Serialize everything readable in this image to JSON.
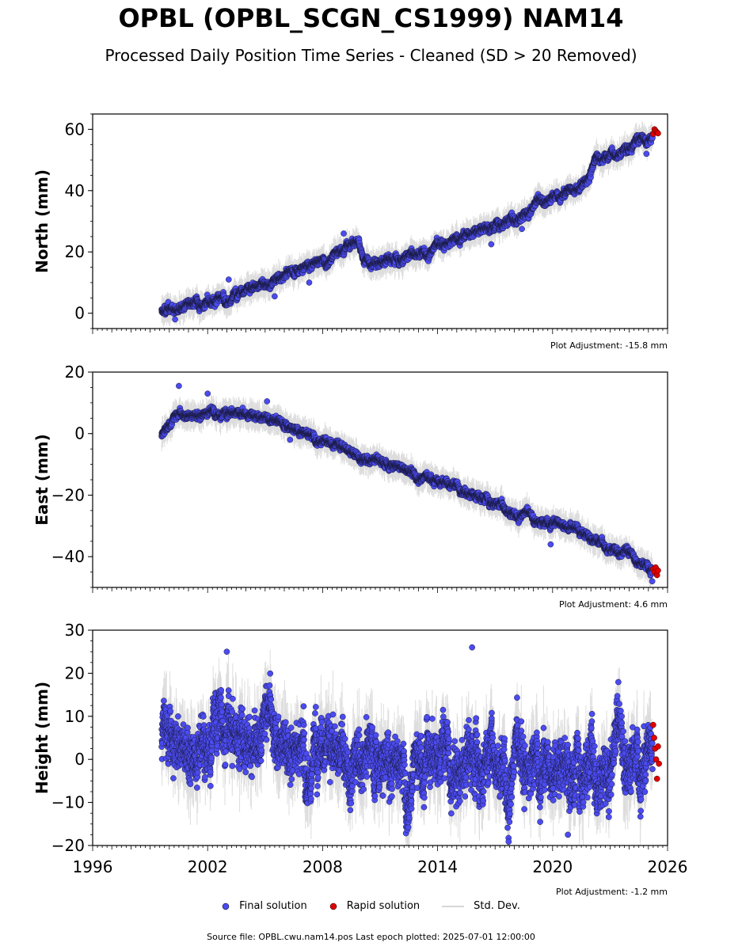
{
  "title": "OPBL (OPBL_SCGN_CS1999) NAM14",
  "subtitle": "Processed Daily Position Time Series - Cleaned (SD > 20 Removed)",
  "source_line": "Source file: OPBL.cwu.nam14.pos  Last epoch plotted: 2025-07-01 12:00:00",
  "legend": {
    "final": "Final solution",
    "rapid": "Rapid solution",
    "sd": "Std. Dev."
  },
  "colors": {
    "final": "#4b4bf0",
    "rapid": "#e00000",
    "sd": "#b4b4b4"
  },
  "chart_data": [
    {
      "type": "scatter",
      "name": "north",
      "ylabel": "North (mm)",
      "adjustment": "Plot Adjustment: -15.8 mm",
      "xlim": [
        1996,
        2026
      ],
      "ylim": [
        -5,
        65
      ],
      "yticks": [
        0,
        20,
        40,
        60
      ],
      "show_x_tick_labels": false,
      "trend": [
        [
          1999.6,
          0.5
        ],
        [
          2002.0,
          3
        ],
        [
          2005.0,
          10
        ],
        [
          2008.0,
          18
        ],
        [
          2009.9,
          24
        ],
        [
          2010.1,
          17
        ],
        [
          2012.0,
          18
        ],
        [
          2014.0,
          22
        ],
        [
          2016.0,
          27
        ],
        [
          2018.0,
          31
        ],
        [
          2020.0,
          38
        ],
        [
          2021.8,
          42
        ],
        [
          2022.2,
          50
        ],
        [
          2024.0,
          54
        ],
        [
          2025.5,
          58
        ]
      ],
      "noise": 1.2,
      "sd": 3,
      "outliers": [
        [
          2000.3,
          -2
        ],
        [
          2003.1,
          11
        ],
        [
          2005.5,
          5.5
        ],
        [
          2007.3,
          10
        ],
        [
          2009.1,
          26
        ],
        [
          2016.8,
          22.5
        ],
        [
          2018.4,
          27.5
        ],
        [
          2024.9,
          52
        ]
      ],
      "rapid": [
        [
          2025.25,
          58.5
        ],
        [
          2025.32,
          60
        ],
        [
          2025.38,
          59.5
        ],
        [
          2025.45,
          59
        ],
        [
          2025.5,
          58.7
        ]
      ]
    },
    {
      "type": "scatter",
      "name": "east",
      "ylabel": "East (mm)",
      "adjustment": "Plot Adjustment: 4.6 mm",
      "xlim": [
        1996,
        2026
      ],
      "ylim": [
        -50,
        20
      ],
      "yticks": [
        -40,
        -20,
        0,
        20
      ],
      "show_x_tick_labels": false,
      "trend": [
        [
          1999.6,
          0
        ],
        [
          2000.5,
          6
        ],
        [
          2002.0,
          7
        ],
        [
          2004.5,
          6.5
        ],
        [
          2006.0,
          3
        ],
        [
          2008.0,
          -1
        ],
        [
          2010.0,
          -7
        ],
        [
          2012.0,
          -11
        ],
        [
          2014.0,
          -15
        ],
        [
          2016.0,
          -20
        ],
        [
          2018.0,
          -25
        ],
        [
          2019.5,
          -29
        ],
        [
          2020.5,
          -29
        ],
        [
          2021.5,
          -32
        ],
        [
          2023.0,
          -37
        ],
        [
          2025.5,
          -45
        ]
      ],
      "noise": 1.1,
      "sd": 3,
      "outliers": [
        [
          2000.5,
          15.5
        ],
        [
          2002.0,
          13
        ],
        [
          2005.1,
          10.5
        ],
        [
          2006.3,
          -2
        ],
        [
          2019.9,
          -36
        ],
        [
          2025.2,
          -48
        ]
      ],
      "rapid": [
        [
          2025.25,
          -44
        ],
        [
          2025.32,
          -45
        ],
        [
          2025.38,
          -43.5
        ],
        [
          2025.45,
          -46
        ],
        [
          2025.5,
          -44.5
        ]
      ]
    },
    {
      "type": "scatter",
      "name": "height",
      "ylabel": "Height (mm)",
      "adjustment": "Plot Adjustment: -1.2 mm",
      "xlim": [
        1996,
        2026
      ],
      "ylim": [
        -20,
        30
      ],
      "yticks": [
        -20,
        -10,
        0,
        10,
        20,
        30
      ],
      "show_x_tick_labels": true,
      "xticks": [
        1996,
        2002,
        2008,
        2014,
        2020,
        2026
      ],
      "trend": [
        [
          1999.6,
          3
        ],
        [
          2003.0,
          7
        ],
        [
          2006.0,
          5
        ],
        [
          2010.0,
          2
        ],
        [
          2014.0,
          2
        ],
        [
          2018.0,
          1
        ],
        [
          2020.0,
          -1
        ],
        [
          2022.0,
          0
        ],
        [
          2025.5,
          1
        ]
      ],
      "noise": 6,
      "sd": 6,
      "outliers": [
        [
          2003.0,
          25
        ],
        [
          2015.8,
          26
        ],
        [
          2020.8,
          -17.5
        ]
      ],
      "rapid": [
        [
          2025.25,
          8
        ],
        [
          2025.3,
          5
        ],
        [
          2025.35,
          2.5
        ],
        [
          2025.4,
          0
        ],
        [
          2025.45,
          -4.5
        ],
        [
          2025.5,
          3
        ],
        [
          2025.55,
          -1
        ]
      ]
    }
  ]
}
